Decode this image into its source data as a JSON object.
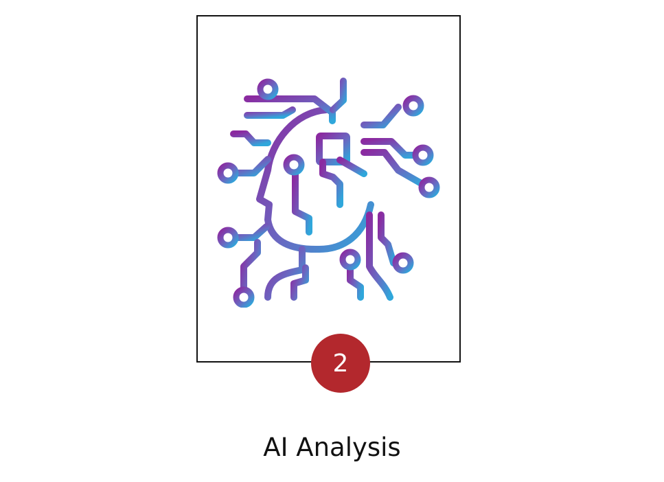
{
  "card": {
    "icon": "ai-brain-circuit-icon",
    "gradient": [
      "#8b2aa0",
      "#2fa7db"
    ]
  },
  "badge": {
    "number": "2",
    "color": "#b3282d"
  },
  "caption": {
    "text": "AI Analysis"
  }
}
